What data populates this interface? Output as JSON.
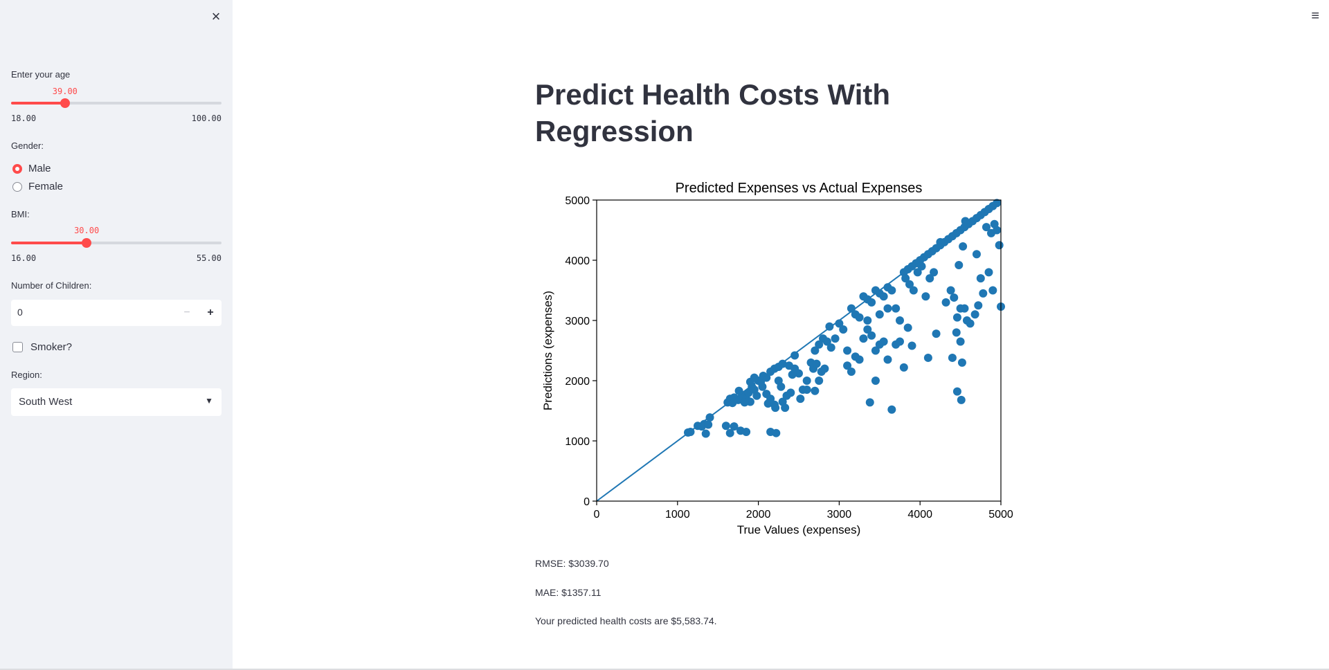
{
  "sidebar": {
    "age": {
      "label": "Enter your age",
      "value": "39.00",
      "min": "18.00",
      "max": "100.00",
      "fraction": 0.2561
    },
    "gender": {
      "label": "Gender:",
      "options": [
        "Male",
        "Female"
      ],
      "selected": "Male"
    },
    "bmi": {
      "label": "BMI:",
      "value": "30.00",
      "min": "16.00",
      "max": "55.00",
      "fraction": 0.359
    },
    "children": {
      "label": "Number of Children:",
      "value": "0",
      "minus": "−",
      "plus": "+"
    },
    "smoker": {
      "label": "Smoker?",
      "checked": false
    },
    "region": {
      "label": "Region:",
      "selected": "South West"
    },
    "close_icon": "×"
  },
  "header": {
    "menu_icon": "≡"
  },
  "main": {
    "title": "Predict Health Costs With Regression",
    "rmse": "RMSE: $3039.70",
    "mae": "MAE: $1357.11",
    "prediction": "Your predicted health costs are $5,583.74."
  },
  "chart_data": {
    "type": "scatter",
    "title": "Predicted Expenses vs Actual Expenses",
    "xlabel": "True Values (expenses)",
    "ylabel": "Predictions (expenses)",
    "xlim": [
      0,
      5000
    ],
    "ylim": [
      0,
      5000
    ],
    "xticks": [
      "0",
      "1000",
      "2000",
      "3000",
      "4000",
      "5000"
    ],
    "yticks": [
      "0",
      "1000",
      "2000",
      "3000",
      "4000",
      "5000"
    ],
    "reference_line": [
      [
        0,
        0
      ],
      [
        5000,
        5000
      ]
    ],
    "point_color": "#1f77b4",
    "points": [
      [
        1130,
        1140
      ],
      [
        1160,
        1150
      ],
      [
        1250,
        1250
      ],
      [
        1300,
        1240
      ],
      [
        1330,
        1280
      ],
      [
        1380,
        1270
      ],
      [
        1400,
        1390
      ],
      [
        1350,
        1120
      ],
      [
        1600,
        1250
      ],
      [
        1650,
        1130
      ],
      [
        1700,
        1240
      ],
      [
        1780,
        1170
      ],
      [
        1850,
        1150
      ],
      [
        2150,
        1150
      ],
      [
        2220,
        1130
      ],
      [
        1620,
        1640
      ],
      [
        1650,
        1700
      ],
      [
        1680,
        1630
      ],
      [
        1700,
        1720
      ],
      [
        1750,
        1680
      ],
      [
        1800,
        1760
      ],
      [
        1850,
        1700
      ],
      [
        1880,
        1800
      ],
      [
        1900,
        1650
      ],
      [
        1920,
        1900
      ],
      [
        1950,
        1850
      ],
      [
        1980,
        1750
      ],
      [
        2000,
        2000
      ],
      [
        2030,
        1980
      ],
      [
        2060,
        2080
      ],
      [
        2100,
        2050
      ],
      [
        2150,
        2150
      ],
      [
        2200,
        2200
      ],
      [
        2250,
        2230
      ],
      [
        2300,
        2280
      ],
      [
        1900,
        1980
      ],
      [
        1950,
        2050
      ],
      [
        2050,
        1900
      ],
      [
        2100,
        1780
      ],
      [
        2150,
        1700
      ],
      [
        2200,
        1600
      ],
      [
        2120,
        1620
      ],
      [
        1830,
        1640
      ],
      [
        1760,
        1830
      ],
      [
        2250,
        2000
      ],
      [
        2280,
        1900
      ],
      [
        2300,
        1650
      ],
      [
        2350,
        1750
      ],
      [
        2400,
        1800
      ],
      [
        2450,
        2200
      ],
      [
        2500,
        2120
      ],
      [
        2550,
        1850
      ],
      [
        2600,
        2000
      ],
      [
        2650,
        2300
      ],
      [
        2700,
        2500
      ],
      [
        2750,
        2600
      ],
      [
        2800,
        2700
      ],
      [
        2850,
        2650
      ],
      [
        2900,
        2550
      ],
      [
        2450,
        2420
      ],
      [
        2520,
        1700
      ],
      [
        2600,
        1850
      ],
      [
        2700,
        1830
      ],
      [
        2750,
        2000
      ],
      [
        2780,
        2150
      ],
      [
        2820,
        2200
      ],
      [
        2880,
        2900
      ],
      [
        2950,
        2700
      ],
      [
        2680,
        2200
      ],
      [
        2720,
        2280
      ],
      [
        2380,
        2250
      ],
      [
        2420,
        2100
      ],
      [
        2330,
        1550
      ],
      [
        2210,
        1550
      ],
      [
        3000,
        2950
      ],
      [
        3050,
        2850
      ],
      [
        3100,
        2500
      ],
      [
        3150,
        3200
      ],
      [
        3200,
        3100
      ],
      [
        3250,
        3050
      ],
      [
        3300,
        3400
      ],
      [
        3350,
        3350
      ],
      [
        3400,
        3300
      ],
      [
        3450,
        3500
      ],
      [
        3500,
        3450
      ],
      [
        3550,
        3400
      ],
      [
        3600,
        3550
      ],
      [
        3650,
        3500
      ],
      [
        3700,
        3200
      ],
      [
        3750,
        3000
      ],
      [
        3100,
        2250
      ],
      [
        3150,
        2150
      ],
      [
        3200,
        2400
      ],
      [
        3250,
        2350
      ],
      [
        3300,
        2700
      ],
      [
        3350,
        2850
      ],
      [
        3400,
        2750
      ],
      [
        3450,
        2500
      ],
      [
        3500,
        2600
      ],
      [
        3550,
        2650
      ],
      [
        3450,
        2000
      ],
      [
        3380,
        1640
      ],
      [
        3650,
        1520
      ],
      [
        3600,
        2350
      ],
      [
        3700,
        2600
      ],
      [
        3800,
        2220
      ],
      [
        3750,
        2650
      ],
      [
        3850,
        2880
      ],
      [
        3900,
        2580
      ],
      [
        3350,
        3000
      ],
      [
        3500,
        3100
      ],
      [
        3600,
        3200
      ],
      [
        3800,
        3800
      ],
      [
        3850,
        3850
      ],
      [
        3900,
        3900
      ],
      [
        3950,
        3950
      ],
      [
        4000,
        4000
      ],
      [
        4050,
        4050
      ],
      [
        4100,
        4100
      ],
      [
        4150,
        4150
      ],
      [
        4200,
        4200
      ],
      [
        4250,
        4250
      ],
      [
        4300,
        4300
      ],
      [
        4350,
        4350
      ],
      [
        4400,
        4400
      ],
      [
        4450,
        4450
      ],
      [
        4500,
        4500
      ],
      [
        4550,
        4550
      ],
      [
        4600,
        4600
      ],
      [
        4650,
        4650
      ],
      [
        4700,
        4700
      ],
      [
        4750,
        4750
      ],
      [
        4800,
        4800
      ],
      [
        4850,
        4850
      ],
      [
        4900,
        4900
      ],
      [
        4950,
        4950
      ],
      [
        3820,
        3700
      ],
      [
        3870,
        3600
      ],
      [
        3920,
        3500
      ],
      [
        3970,
        3800
      ],
      [
        4020,
        3900
      ],
      [
        4070,
        3400
      ],
      [
        4120,
        3700
      ],
      [
        4170,
        3800
      ],
      [
        4250,
        4300
      ],
      [
        4320,
        3300
      ],
      [
        4380,
        3500
      ],
      [
        4420,
        3380
      ],
      [
        4460,
        3050
      ],
      [
        4500,
        3200
      ],
      [
        4550,
        3200
      ],
      [
        4580,
        3000
      ],
      [
        4620,
        2950
      ],
      [
        4680,
        3100
      ],
      [
        4720,
        3250
      ],
      [
        4780,
        3450
      ],
      [
        4850,
        3800
      ],
      [
        4900,
        3500
      ],
      [
        4950,
        4500
      ],
      [
        4980,
        4250
      ],
      [
        5000,
        3230
      ],
      [
        4100,
        2380
      ],
      [
        4200,
        2780
      ],
      [
        4400,
        2380
      ],
      [
        4450,
        2800
      ],
      [
        4500,
        2650
      ],
      [
        4520,
        2300
      ],
      [
        4460,
        1820
      ],
      [
        4510,
        1680
      ],
      [
        4480,
        3920
      ],
      [
        4530,
        4230
      ],
      [
        4560,
        4650
      ],
      [
        4700,
        4100
      ],
      [
        4750,
        3700
      ],
      [
        4820,
        4550
      ],
      [
        4880,
        4450
      ],
      [
        4920,
        4600
      ]
    ]
  }
}
